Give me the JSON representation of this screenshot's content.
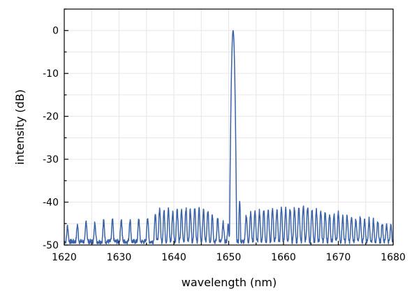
{
  "chart_data": {
    "type": "line",
    "title": "",
    "xlabel": "wavelength (nm)",
    "ylabel": "intensity (dB)",
    "xlim": [
      1620,
      1680
    ],
    "ylim": [
      -50,
      5
    ],
    "xticks": [
      1620,
      1630,
      1640,
      1650,
      1660,
      1670,
      1680
    ],
    "yticks": [
      0,
      -10,
      -20,
      -30,
      -40,
      -50
    ],
    "grid": true,
    "legend": "none",
    "series": [
      {
        "color": "#3a62a7",
        "main_peak": {
          "x": 1650.8,
          "y": 0
        },
        "secondary_peak": {
          "x": 1652.0,
          "y": -39.8
        },
        "side_mode_spacing_nm": 0.8,
        "side_mode_peaks": [
          [
            1620.6,
            -48.0
          ],
          [
            1622.4,
            -47.5
          ],
          [
            1624.0,
            -46.2
          ],
          [
            1625.6,
            -46.6
          ],
          [
            1627.2,
            -46.0
          ],
          [
            1628.8,
            -45.8
          ],
          [
            1630.4,
            -45.5
          ],
          [
            1632.0,
            -45.6
          ],
          [
            1633.6,
            -45.4
          ],
          [
            1635.2,
            -44.7
          ],
          [
            1636.6,
            -43.9
          ],
          [
            1637.4,
            -42.3
          ],
          [
            1638.2,
            -43.0
          ],
          [
            1639.0,
            -42.6
          ],
          [
            1639.8,
            -43.4
          ],
          [
            1640.6,
            -42.4
          ],
          [
            1641.4,
            -43.0
          ],
          [
            1642.2,
            -42.3
          ],
          [
            1643.0,
            -42.6
          ],
          [
            1643.8,
            -42.0
          ],
          [
            1644.6,
            -42.6
          ],
          [
            1645.4,
            -42.9
          ],
          [
            1646.2,
            -43.1
          ],
          [
            1647.0,
            -43.9
          ],
          [
            1648.0,
            -44.9
          ],
          [
            1649.0,
            -46.8
          ],
          [
            1649.9,
            -47.8
          ],
          [
            1653.2,
            -44.2
          ],
          [
            1654.0,
            -43.6
          ],
          [
            1654.8,
            -43.1
          ],
          [
            1655.6,
            -42.9
          ],
          [
            1656.4,
            -42.6
          ],
          [
            1657.2,
            -42.7
          ],
          [
            1658.0,
            -42.3
          ],
          [
            1658.8,
            -42.6
          ],
          [
            1659.6,
            -42.2
          ],
          [
            1660.4,
            -42.4
          ],
          [
            1661.2,
            -42.5
          ],
          [
            1662.0,
            -42.1
          ],
          [
            1662.8,
            -42.3
          ],
          [
            1663.6,
            -41.5
          ],
          [
            1664.4,
            -41.8
          ],
          [
            1665.2,
            -42.5
          ],
          [
            1666.0,
            -42.9
          ],
          [
            1666.8,
            -43.2
          ],
          [
            1667.6,
            -43.4
          ],
          [
            1668.4,
            -43.8
          ],
          [
            1669.2,
            -43.9
          ],
          [
            1670.0,
            -43.6
          ],
          [
            1670.8,
            -44.6
          ],
          [
            1671.6,
            -44.4
          ],
          [
            1672.4,
            -44.9
          ],
          [
            1673.2,
            -45.3
          ],
          [
            1674.0,
            -45.0
          ],
          [
            1674.8,
            -45.6
          ],
          [
            1675.6,
            -45.6
          ],
          [
            1676.4,
            -45.9
          ],
          [
            1677.2,
            -46.3
          ],
          [
            1678.0,
            -46.6
          ],
          [
            1678.8,
            -47.1
          ],
          [
            1679.6,
            -47.3
          ]
        ],
        "noise_floor_db": -49.2
      }
    ]
  }
}
